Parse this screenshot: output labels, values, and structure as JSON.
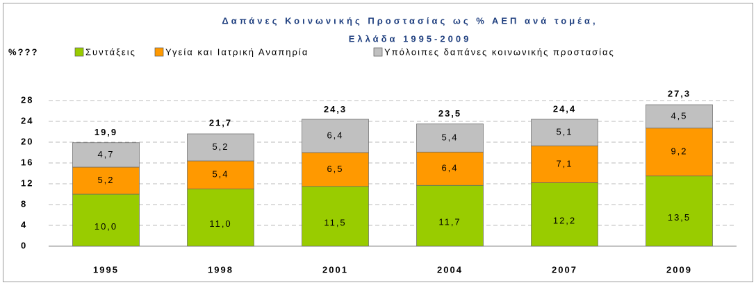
{
  "chart_data": {
    "type": "stacked_bar",
    "title": [
      "Δαπάνες Κοινωνικής Προστασίας ως % ΑΕΠ ανά τομέα,",
      "Ελλάδα 1995-2009"
    ],
    "y_label": "%???",
    "categories": [
      "1995",
      "1998",
      "2001",
      "2004",
      "2007",
      "2009"
    ],
    "series": [
      {
        "name": "Συντάξεις",
        "color": "#99cc00",
        "values": [
          10.0,
          11.0,
          11.5,
          11.7,
          12.2,
          13.5
        ],
        "value_labels": [
          "10,0",
          "11,0",
          "11,5",
          "11,7",
          "12,2",
          "13,5"
        ]
      },
      {
        "name": "Υγεία και Ιατρική Αναπηρία",
        "color": "#ff9900",
        "values": [
          5.2,
          5.4,
          6.5,
          6.4,
          7.1,
          9.2
        ],
        "value_labels": [
          "5,2",
          "5,4",
          "6,5",
          "6,4",
          "7,1",
          "9,2"
        ]
      },
      {
        "name": "Υπόλοιπες δαπάνες κοινωνικής προστασίας",
        "color": "#c0c0c0",
        "values": [
          4.7,
          5.2,
          6.4,
          5.4,
          5.1,
          4.5
        ],
        "value_labels": [
          "4,7",
          "5,2",
          "6,4",
          "5,4",
          "5,1",
          "4,5"
        ]
      }
    ],
    "totals": {
      "color": "#ff0000",
      "values": [
        19.9,
        21.7,
        24.3,
        23.5,
        24.4,
        27.3
      ],
      "value_labels": [
        "19,9",
        "21,7",
        "24,3",
        "23,5",
        "24,4",
        "27,3"
      ]
    },
    "ylim": [
      0,
      28
    ],
    "yticks": [
      0,
      4,
      8,
      12,
      16,
      20,
      24,
      28
    ],
    "grid": true
  }
}
